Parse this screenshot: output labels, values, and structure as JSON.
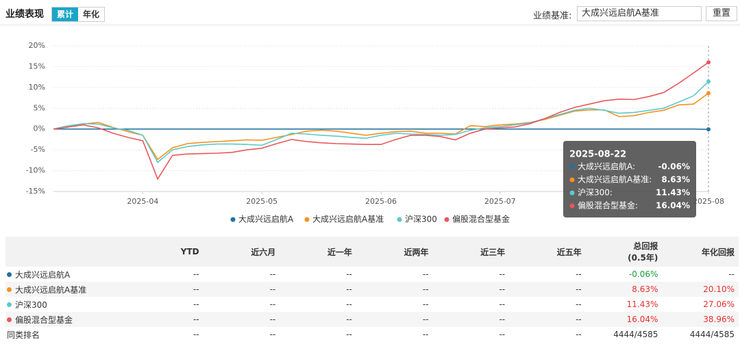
{
  "header": {
    "title": "业绩表现",
    "tabs": [
      "累计",
      "年化"
    ],
    "benchmark_label": "业绩基准:",
    "benchmark_value": "大成兴远启航A基准",
    "reset": "重置"
  },
  "chart_data": {
    "type": "line",
    "categories": [
      null,
      null,
      null,
      null,
      null,
      null,
      "2025-04",
      null,
      null,
      null,
      null,
      null,
      null,
      null,
      "2025-05",
      null,
      null,
      null,
      null,
      null,
      null,
      null,
      "2025-06",
      null,
      null,
      null,
      null,
      null,
      null,
      null,
      "2025-07",
      null,
      null,
      null,
      null,
      null,
      null,
      null,
      null,
      null,
      null,
      null,
      null,
      null,
      "2025-08"
    ],
    "ylim": [
      -15,
      20
    ],
    "yticks": [
      {
        "value": -15,
        "label": "-15%"
      },
      {
        "value": -10,
        "label": "-10%"
      },
      {
        "value": -5,
        "label": "-5%"
      },
      {
        "value": 0,
        "label": "0%"
      },
      {
        "value": 5,
        "label": "5%"
      },
      {
        "value": 10,
        "label": "10%"
      },
      {
        "value": 15,
        "label": "15%"
      },
      {
        "value": 20,
        "label": "20%"
      }
    ],
    "grid": true,
    "series": [
      {
        "name": "大成兴远启航A",
        "color": "#23719f",
        "values": [
          0,
          0,
          0,
          0,
          0,
          0,
          0,
          0,
          0,
          0,
          0,
          0,
          0,
          0,
          0,
          0,
          0,
          0,
          0,
          0,
          0,
          0,
          0,
          0,
          0,
          0,
          0,
          0,
          0,
          0,
          0,
          0,
          0,
          0,
          0,
          0,
          0,
          0,
          0,
          0,
          0,
          0,
          0,
          0,
          -0.06
        ]
      },
      {
        "name": "大成兴远启航A基准",
        "color": "#f5921e",
        "values": [
          0,
          0.5,
          1.2,
          1.6,
          0.4,
          -0.6,
          -1.5,
          -7.3,
          -4.5,
          -3.5,
          -3.2,
          -3,
          -2.8,
          -2.6,
          -2.7,
          -2,
          -1.3,
          -0.5,
          -0.3,
          -0.5,
          -1,
          -1.5,
          -1,
          -0.6,
          -0.5,
          -1,
          -1,
          -1.2,
          0.8,
          0.6,
          1,
          1.2,
          1.6,
          2.3,
          3.3,
          4.3,
          4.6,
          4.6,
          3,
          3.2,
          4,
          4.5,
          5.8,
          6,
          8.63
        ]
      },
      {
        "name": "沪深300",
        "color": "#5ec9c9",
        "values": [
          0,
          0.8,
          1.3,
          1.2,
          0.3,
          -0.3,
          -1.5,
          -8,
          -5,
          -4.2,
          -3.8,
          -3.6,
          -3.6,
          -3.7,
          -3.9,
          -2.5,
          -1,
          -1.2,
          -1.5,
          -1.7,
          -2,
          -2.2,
          -1.5,
          -1,
          -1.2,
          -1.3,
          -1.5,
          -1.3,
          -0.3,
          0.3,
          0.6,
          1,
          1.5,
          2.5,
          3.5,
          4.5,
          5,
          4.5,
          3.8,
          4,
          4.5,
          5,
          6.5,
          8,
          11.43
        ]
      },
      {
        "name": "偏股混合型基金",
        "color": "#e8575b",
        "values": [
          0,
          0.5,
          1,
          0.3,
          -1,
          -2,
          -2.8,
          -12,
          -6.3,
          -6,
          -5.9,
          -5.8,
          -5.6,
          -5,
          -4.6,
          -3.5,
          -2.5,
          -3,
          -3.3,
          -3.5,
          -3.6,
          -3.7,
          -3.7,
          -2.5,
          -1.5,
          -1.5,
          -1.8,
          -2.6,
          -1,
          0,
          0.3,
          0.5,
          1.3,
          2.5,
          4,
          5.2,
          6,
          6.8,
          7.2,
          7.1,
          7.8,
          8.8,
          11,
          13.5,
          16.04
        ]
      }
    ],
    "tooltip": {
      "title": "2025-08-22",
      "names": [
        "大成兴远启航A:",
        "大成兴远启航A基准:",
        "沪深300:",
        "偏股混合型基金:"
      ],
      "value_labels": [
        "-0.06%",
        "8.63%",
        "11.43%",
        "16.04%"
      ]
    }
  },
  "table": {
    "headers": [
      [
        "YTD"
      ],
      [
        "近六月"
      ],
      [
        "近一年"
      ],
      [
        "近两年"
      ],
      [
        "近三年"
      ],
      [
        "近五年"
      ],
      [
        "总回报",
        "(0.5年)"
      ],
      [
        "年化回报"
      ]
    ],
    "rows": [
      {
        "name": "大成兴远启航A",
        "color": "#23719f",
        "cells": [
          "--",
          "--",
          "--",
          "--",
          "--",
          "--",
          "-0.06%",
          "--"
        ]
      },
      {
        "name": "大成兴远启航A基准",
        "color": "#f5921e",
        "cells": [
          "--",
          "--",
          "--",
          "--",
          "--",
          "--",
          "8.63%",
          "20.10%"
        ]
      },
      {
        "name": "沪深300",
        "color": "#5ec9c9",
        "cells": [
          "--",
          "--",
          "--",
          "--",
          "--",
          "--",
          "11.43%",
          "27.06%"
        ]
      },
      {
        "name": "偏股混合型基金",
        "color": "#e8575b",
        "cells": [
          "--",
          "--",
          "--",
          "--",
          "--",
          "--",
          "16.04%",
          "38.96%"
        ]
      },
      {
        "name": "同类排名",
        "cells": [
          "--",
          "--",
          "--",
          "--",
          "--",
          "--",
          "4444/4585",
          "4444/4585"
        ]
      }
    ]
  }
}
